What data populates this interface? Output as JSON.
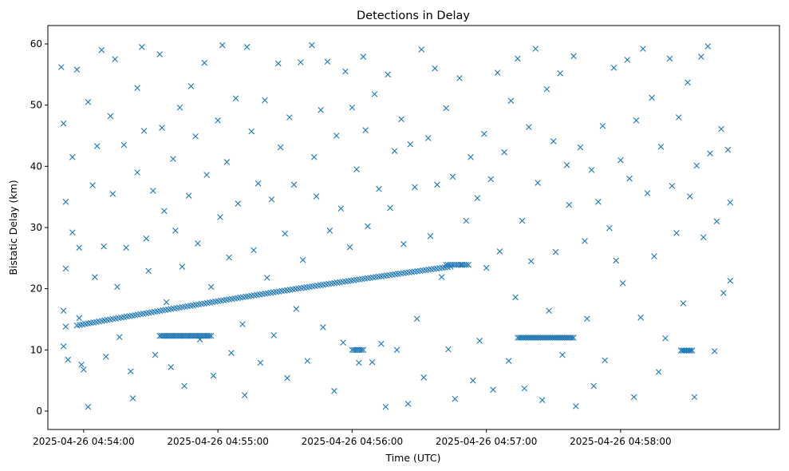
{
  "chart_data": {
    "type": "scatter",
    "title": "Detections in Delay",
    "xlabel": "Time (UTC)",
    "ylabel": "Bistatic Delay (km)",
    "x_axis_type": "time",
    "xlim": [
      "2025-04-26 04:53:44",
      "2025-04-26 04:59:11"
    ],
    "ylim": [
      -3,
      63
    ],
    "x_ticks": [
      "2025-04-26 04:54:00",
      "2025-04-26 04:55:00",
      "2025-04-26 04:56:00",
      "2025-04-26 04:57:00",
      "2025-04-26 04:58:00"
    ],
    "y_ticks": [
      0,
      10,
      20,
      30,
      40,
      50,
      60
    ],
    "marker": "x",
    "marker_color": "#1f77b4",
    "grid": false,
    "legend": "none",
    "series": [
      {
        "kind": "clutter",
        "points": [
          [
            "2025-04-26 04:53:50",
            56.2
          ],
          [
            "2025-04-26 04:53:51",
            47.0
          ],
          [
            "2025-04-26 04:53:52",
            34.2
          ],
          [
            "2025-04-26 04:53:52",
            23.3
          ],
          [
            "2025-04-26 04:53:51",
            16.4
          ],
          [
            "2025-04-26 04:53:52",
            13.8
          ],
          [
            "2025-04-26 04:53:51",
            10.6
          ],
          [
            "2025-04-26 04:53:53",
            8.4
          ],
          [
            "2025-04-26 04:53:55",
            41.5
          ],
          [
            "2025-04-26 04:53:55",
            29.2
          ],
          [
            "2025-04-26 04:53:57",
            55.8
          ],
          [
            "2025-04-26 04:53:58",
            26.7
          ],
          [
            "2025-04-26 04:53:58",
            15.2
          ],
          [
            "2025-04-26 04:53:59",
            7.6
          ],
          [
            "2025-04-26 04:54:00",
            6.8
          ],
          [
            "2025-04-26 04:54:02",
            0.7
          ],
          [
            "2025-04-26 04:54:02",
            50.5
          ],
          [
            "2025-04-26 04:54:04",
            36.9
          ],
          [
            "2025-04-26 04:54:05",
            21.9
          ],
          [
            "2025-04-26 04:54:06",
            43.3
          ],
          [
            "2025-04-26 04:54:08",
            59.0
          ],
          [
            "2025-04-26 04:54:09",
            26.9
          ],
          [
            "2025-04-26 04:54:10",
            8.9
          ],
          [
            "2025-04-26 04:54:12",
            48.2
          ],
          [
            "2025-04-26 04:54:13",
            35.5
          ],
          [
            "2025-04-26 04:54:14",
            57.5
          ],
          [
            "2025-04-26 04:54:15",
            20.3
          ],
          [
            "2025-04-26 04:54:16",
            12.1
          ],
          [
            "2025-04-26 04:54:18",
            43.5
          ],
          [
            "2025-04-26 04:54:19",
            26.7
          ],
          [
            "2025-04-26 04:54:21",
            6.5
          ],
          [
            "2025-04-26 04:54:22",
            2.1
          ],
          [
            "2025-04-26 04:54:24",
            52.8
          ],
          [
            "2025-04-26 04:54:24",
            39.0
          ],
          [
            "2025-04-26 04:54:26",
            59.5
          ],
          [
            "2025-04-26 04:54:27",
            45.8
          ],
          [
            "2025-04-26 04:54:28",
            28.2
          ],
          [
            "2025-04-26 04:54:29",
            22.9
          ],
          [
            "2025-04-26 04:54:31",
            36.0
          ],
          [
            "2025-04-26 04:54:32",
            9.2
          ],
          [
            "2025-04-26 04:54:34",
            58.3
          ],
          [
            "2025-04-26 04:54:35",
            46.3
          ],
          [
            "2025-04-26 04:54:36",
            32.7
          ],
          [
            "2025-04-26 04:54:37",
            17.8
          ],
          [
            "2025-04-26 04:54:39",
            7.2
          ],
          [
            "2025-04-26 04:54:40",
            41.2
          ],
          [
            "2025-04-26 04:54:41",
            29.5
          ],
          [
            "2025-04-26 04:54:43",
            49.6
          ],
          [
            "2025-04-26 04:54:44",
            23.6
          ],
          [
            "2025-04-26 04:54:45",
            4.1
          ],
          [
            "2025-04-26 04:54:47",
            35.2
          ],
          [
            "2025-04-26 04:54:48",
            53.1
          ],
          [
            "2025-04-26 04:54:50",
            44.9
          ],
          [
            "2025-04-26 04:54:51",
            27.4
          ],
          [
            "2025-04-26 04:54:52",
            11.7
          ],
          [
            "2025-04-26 04:54:54",
            56.9
          ],
          [
            "2025-04-26 04:54:55",
            38.6
          ],
          [
            "2025-04-26 04:54:57",
            20.3
          ],
          [
            "2025-04-26 04:54:58",
            5.8
          ],
          [
            "2025-04-26 04:55:00",
            47.5
          ],
          [
            "2025-04-26 04:55:01",
            31.7
          ],
          [
            "2025-04-26 04:55:02",
            59.8
          ],
          [
            "2025-04-26 04:55:04",
            40.7
          ],
          [
            "2025-04-26 04:55:05",
            25.1
          ],
          [
            "2025-04-26 04:55:06",
            9.5
          ],
          [
            "2025-04-26 04:55:08",
            51.1
          ],
          [
            "2025-04-26 04:55:09",
            33.9
          ],
          [
            "2025-04-26 04:55:11",
            14.2
          ],
          [
            "2025-04-26 04:55:12",
            2.6
          ],
          [
            "2025-04-26 04:55:13",
            59.5
          ],
          [
            "2025-04-26 04:55:15",
            45.7
          ],
          [
            "2025-04-26 04:55:16",
            26.3
          ],
          [
            "2025-04-26 04:55:18",
            37.2
          ],
          [
            "2025-04-26 04:55:19",
            7.9
          ],
          [
            "2025-04-26 04:55:21",
            50.8
          ],
          [
            "2025-04-26 04:55:22",
            21.8
          ],
          [
            "2025-04-26 04:55:24",
            34.6
          ],
          [
            "2025-04-26 04:55:25",
            12.4
          ],
          [
            "2025-04-26 04:55:27",
            56.8
          ],
          [
            "2025-04-26 04:55:28",
            43.1
          ],
          [
            "2025-04-26 04:55:30",
            29.0
          ],
          [
            "2025-04-26 04:55:31",
            5.4
          ],
          [
            "2025-04-26 04:55:32",
            48.0
          ],
          [
            "2025-04-26 04:55:34",
            37.0
          ],
          [
            "2025-04-26 04:55:35",
            16.7
          ],
          [
            "2025-04-26 04:55:37",
            57.0
          ],
          [
            "2025-04-26 04:55:38",
            24.7
          ],
          [
            "2025-04-26 04:55:40",
            8.2
          ],
          [
            "2025-04-26 04:55:42",
            59.8
          ],
          [
            "2025-04-26 04:55:43",
            41.5
          ],
          [
            "2025-04-26 04:55:44",
            35.1
          ],
          [
            "2025-04-26 04:55:46",
            49.2
          ],
          [
            "2025-04-26 04:55:47",
            13.7
          ],
          [
            "2025-04-26 04:55:49",
            57.1
          ],
          [
            "2025-04-26 04:55:50",
            29.5
          ],
          [
            "2025-04-26 04:55:52",
            3.3
          ],
          [
            "2025-04-26 04:55:53",
            45.0
          ],
          [
            "2025-04-26 04:55:55",
            33.1
          ],
          [
            "2025-04-26 04:55:56",
            11.2
          ],
          [
            "2025-04-26 04:55:57",
            55.5
          ],
          [
            "2025-04-26 04:55:59",
            26.8
          ],
          [
            "2025-04-26 04:56:00",
            49.6
          ],
          [
            "2025-04-26 04:56:02",
            39.5
          ],
          [
            "2025-04-26 04:56:03",
            7.9
          ],
          [
            "2025-04-26 04:56:05",
            57.9
          ],
          [
            "2025-04-26 04:56:06",
            45.9
          ],
          [
            "2025-04-26 04:56:07",
            30.2
          ],
          [
            "2025-04-26 04:56:09",
            8.0
          ],
          [
            "2025-04-26 04:56:10",
            51.8
          ],
          [
            "2025-04-26 04:56:12",
            36.3
          ],
          [
            "2025-04-26 04:56:13",
            11.0
          ],
          [
            "2025-04-26 04:56:15",
            0.7
          ],
          [
            "2025-04-26 04:56:16",
            55.0
          ],
          [
            "2025-04-26 04:56:17",
            33.2
          ],
          [
            "2025-04-26 04:56:19",
            42.5
          ],
          [
            "2025-04-26 04:56:20",
            10.0
          ],
          [
            "2025-04-26 04:56:22",
            47.7
          ],
          [
            "2025-04-26 04:56:23",
            27.3
          ],
          [
            "2025-04-26 04:56:25",
            1.2
          ],
          [
            "2025-04-26 04:56:26",
            43.6
          ],
          [
            "2025-04-26 04:56:28",
            36.6
          ],
          [
            "2025-04-26 04:56:29",
            15.1
          ],
          [
            "2025-04-26 04:56:31",
            59.1
          ],
          [
            "2025-04-26 04:56:32",
            5.5
          ],
          [
            "2025-04-26 04:56:34",
            44.6
          ],
          [
            "2025-04-26 04:56:35",
            28.6
          ],
          [
            "2025-04-26 04:56:37",
            56.0
          ],
          [
            "2025-04-26 04:56:38",
            37.0
          ],
          [
            "2025-04-26 04:56:40",
            21.9
          ],
          [
            "2025-04-26 04:56:42",
            49.5
          ],
          [
            "2025-04-26 04:56:43",
            10.1
          ],
          [
            "2025-04-26 04:56:45",
            38.3
          ],
          [
            "2025-04-26 04:56:46",
            2.0
          ],
          [
            "2025-04-26 04:56:48",
            54.4
          ],
          [
            "2025-04-26 04:56:49",
            23.9
          ],
          [
            "2025-04-26 04:56:51",
            31.1
          ],
          [
            "2025-04-26 04:56:53",
            41.5
          ],
          [
            "2025-04-26 04:56:54",
            5.0
          ],
          [
            "2025-04-26 04:56:56",
            34.8
          ],
          [
            "2025-04-26 04:56:57",
            11.5
          ],
          [
            "2025-04-26 04:56:59",
            45.3
          ],
          [
            "2025-04-26 04:57:00",
            23.4
          ],
          [
            "2025-04-26 04:57:02",
            37.9
          ],
          [
            "2025-04-26 04:57:03",
            3.5
          ],
          [
            "2025-04-26 04:57:05",
            55.3
          ],
          [
            "2025-04-26 04:57:06",
            26.1
          ],
          [
            "2025-04-26 04:57:08",
            42.3
          ],
          [
            "2025-04-26 04:57:10",
            8.2
          ],
          [
            "2025-04-26 04:57:11",
            50.7
          ],
          [
            "2025-04-26 04:57:13",
            18.6
          ],
          [
            "2025-04-26 04:57:14",
            57.6
          ],
          [
            "2025-04-26 04:57:16",
            31.1
          ],
          [
            "2025-04-26 04:57:17",
            3.7
          ],
          [
            "2025-04-26 04:57:19",
            46.4
          ],
          [
            "2025-04-26 04:57:20",
            24.5
          ],
          [
            "2025-04-26 04:57:22",
            59.2
          ],
          [
            "2025-04-26 04:57:23",
            37.3
          ],
          [
            "2025-04-26 04:57:25",
            1.8
          ],
          [
            "2025-04-26 04:57:27",
            52.6
          ],
          [
            "2025-04-26 04:57:28",
            16.4
          ],
          [
            "2025-04-26 04:57:30",
            44.1
          ],
          [
            "2025-04-26 04:57:31",
            26.0
          ],
          [
            "2025-04-26 04:57:33",
            55.2
          ],
          [
            "2025-04-26 04:57:34",
            9.2
          ],
          [
            "2025-04-26 04:57:36",
            40.2
          ],
          [
            "2025-04-26 04:57:37",
            33.7
          ],
          [
            "2025-04-26 04:57:39",
            58.0
          ],
          [
            "2025-04-26 04:57:40",
            0.8
          ],
          [
            "2025-04-26 04:57:42",
            43.1
          ],
          [
            "2025-04-26 04:57:44",
            27.8
          ],
          [
            "2025-04-26 04:57:45",
            15.1
          ],
          [
            "2025-04-26 04:57:47",
            39.4
          ],
          [
            "2025-04-26 04:57:48",
            4.1
          ],
          [
            "2025-04-26 04:57:50",
            34.2
          ],
          [
            "2025-04-26 04:57:52",
            46.6
          ],
          [
            "2025-04-26 04:57:53",
            8.3
          ],
          [
            "2025-04-26 04:57:55",
            29.9
          ],
          [
            "2025-04-26 04:57:57",
            56.1
          ],
          [
            "2025-04-26 04:57:58",
            24.6
          ],
          [
            "2025-04-26 04:58:00",
            41.0
          ],
          [
            "2025-04-26 04:58:01",
            20.9
          ],
          [
            "2025-04-26 04:58:03",
            57.4
          ],
          [
            "2025-04-26 04:58:04",
            38.0
          ],
          [
            "2025-04-26 04:58:06",
            2.3
          ],
          [
            "2025-04-26 04:58:07",
            47.5
          ],
          [
            "2025-04-26 04:58:09",
            15.3
          ],
          [
            "2025-04-26 04:58:10",
            59.2
          ],
          [
            "2025-04-26 04:58:12",
            35.6
          ],
          [
            "2025-04-26 04:58:14",
            51.2
          ],
          [
            "2025-04-26 04:58:15",
            25.3
          ],
          [
            "2025-04-26 04:58:17",
            6.4
          ],
          [
            "2025-04-26 04:58:18",
            43.2
          ],
          [
            "2025-04-26 04:58:20",
            11.9
          ],
          [
            "2025-04-26 04:58:22",
            57.6
          ],
          [
            "2025-04-26 04:58:23",
            36.8
          ],
          [
            "2025-04-26 04:58:25",
            29.1
          ],
          [
            "2025-04-26 04:58:26",
            48.0
          ],
          [
            "2025-04-26 04:58:28",
            17.6
          ],
          [
            "2025-04-26 04:58:30",
            53.7
          ],
          [
            "2025-04-26 04:58:31",
            35.1
          ],
          [
            "2025-04-26 04:58:33",
            2.3
          ],
          [
            "2025-04-26 04:58:34",
            40.1
          ],
          [
            "2025-04-26 04:58:36",
            57.9
          ],
          [
            "2025-04-26 04:58:37",
            28.4
          ],
          [
            "2025-04-26 04:58:39",
            59.6
          ],
          [
            "2025-04-26 04:58:40",
            42.1
          ],
          [
            "2025-04-26 04:58:42",
            9.8
          ],
          [
            "2025-04-26 04:58:43",
            31.0
          ],
          [
            "2025-04-26 04:58:45",
            46.1
          ],
          [
            "2025-04-26 04:58:46",
            19.3
          ],
          [
            "2025-04-26 04:58:48",
            42.7
          ],
          [
            "2025-04-26 04:58:49",
            21.3
          ],
          [
            "2025-04-26 04:58:49",
            34.1
          ]
        ]
      },
      {
        "kind": "track-rising",
        "t_start": "2025-04-26 04:53:57",
        "t_end": "2025-04-26 04:56:44",
        "count": 136,
        "y_start": 14.0,
        "y_end": 23.6
      },
      {
        "kind": "track-flat",
        "t_start": "2025-04-26 04:56:42",
        "t_end": "2025-04-26 04:56:52",
        "count": 12,
        "y": 23.9
      },
      {
        "kind": "track-flat",
        "t_start": "2025-04-26 04:54:34",
        "t_end": "2025-04-26 04:54:57",
        "count": 30,
        "y": 12.3
      },
      {
        "kind": "track-flat",
        "t_start": "2025-04-26 04:57:14",
        "t_end": "2025-04-26 04:57:39",
        "count": 34,
        "y": 12.0
      },
      {
        "kind": "track-flat",
        "t_start": "2025-04-26 04:58:27",
        "t_end": "2025-04-26 04:58:32",
        "count": 8,
        "y": 9.9
      },
      {
        "kind": "track-flat",
        "t_start": "2025-04-26 04:56:00",
        "t_end": "2025-04-26 04:56:05",
        "count": 7,
        "y": 10.0
      }
    ]
  }
}
